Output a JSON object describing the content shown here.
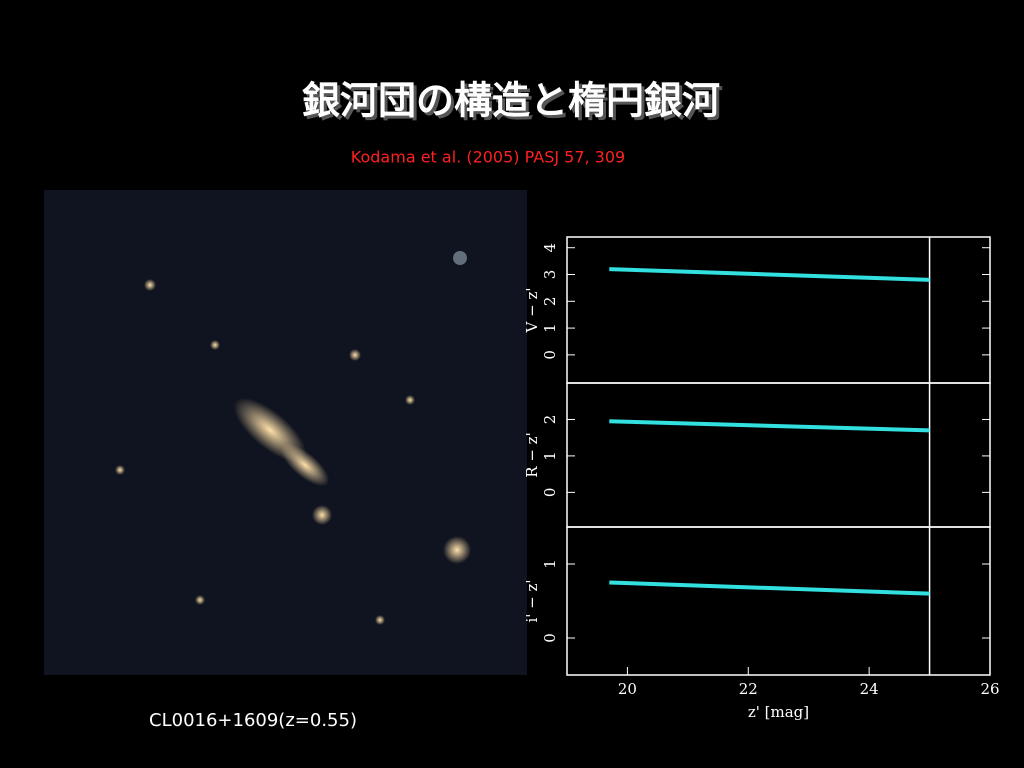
{
  "title": "銀河団の構造と楕円銀河",
  "reference": "Kodama et al. (2005) PASJ 57, 309",
  "caption": "CL0016+1609(z=0.55)",
  "chart_data": [
    {
      "type": "line",
      "ylabel": "V − z'",
      "x": [
        19.7,
        25
      ],
      "xlim": [
        19,
        26
      ],
      "ylim": [
        -1.05,
        4.4
      ],
      "yticks": [
        0,
        1,
        2,
        3,
        4
      ],
      "vline": 25,
      "series": [
        {
          "color": "#33e0e0",
          "values": [
            3.2,
            2.8
          ]
        }
      ]
    },
    {
      "type": "line",
      "ylabel": "R − z'",
      "x": [
        19.7,
        25
      ],
      "xlim": [
        19,
        26
      ],
      "ylim": [
        -0.95,
        3
      ],
      "yticks": [
        0,
        1,
        2
      ],
      "vline": 25,
      "series": [
        {
          "color": "#33e0e0",
          "values": [
            1.95,
            1.7
          ]
        }
      ]
    },
    {
      "type": "line",
      "ylabel": "i' − z'",
      "xlabel": "z' [mag]",
      "x": [
        19.7,
        25
      ],
      "xlim": [
        19,
        26
      ],
      "ylim": [
        -0.5,
        1.5
      ],
      "yticks": [
        0,
        1
      ],
      "xticks": [
        20,
        22,
        24,
        26
      ],
      "vline": 25,
      "series": [
        {
          "color": "#33e0e0",
          "values": [
            0.75,
            0.6
          ]
        }
      ]
    }
  ]
}
